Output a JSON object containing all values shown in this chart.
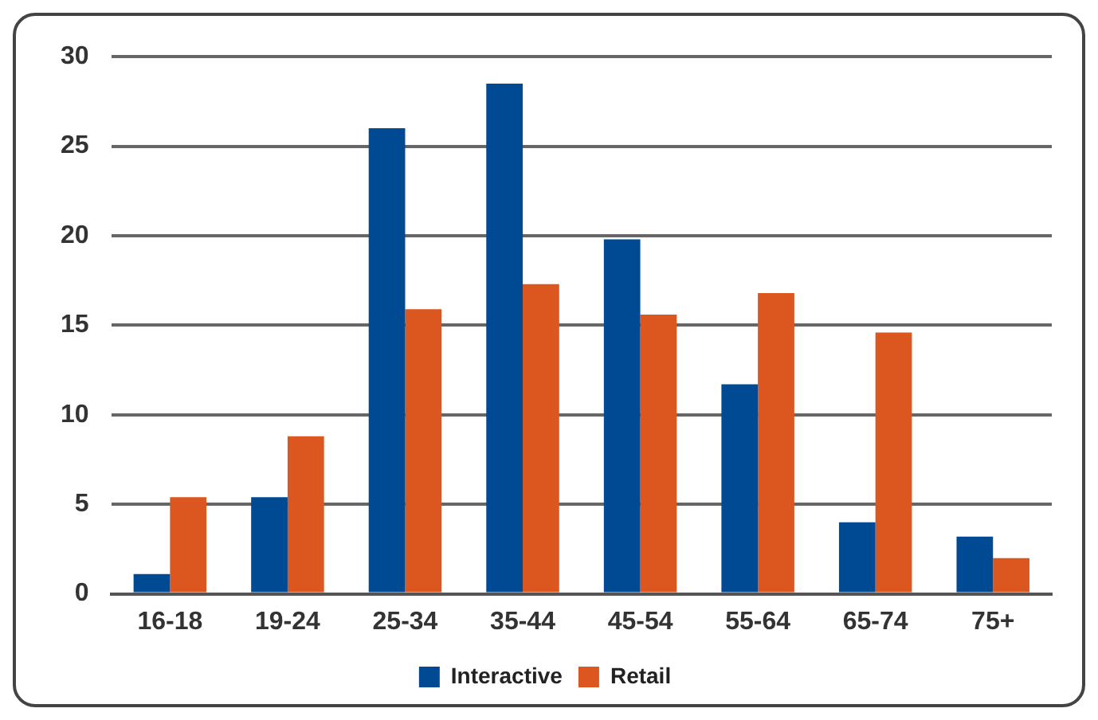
{
  "chart_data": {
    "type": "bar",
    "categories": [
      "16-18",
      "19-24",
      "25-34",
      "35-44",
      "45-54",
      "55-64",
      "65-74",
      "75+"
    ],
    "series": [
      {
        "name": "Interactive",
        "color": "#004a93",
        "values": [
          1.1,
          5.4,
          26.0,
          28.5,
          19.8,
          11.7,
          4.0,
          3.2
        ]
      },
      {
        "name": "Retail",
        "color": "#dc561f",
        "values": [
          5.4,
          8.8,
          15.9,
          17.3,
          15.6,
          16.8,
          14.6,
          2.0
        ]
      }
    ],
    "ylim": [
      0,
      30
    ],
    "yticks": [
      0,
      5,
      10,
      15,
      20,
      25,
      30
    ],
    "grid": "y",
    "legend": "bottom"
  }
}
